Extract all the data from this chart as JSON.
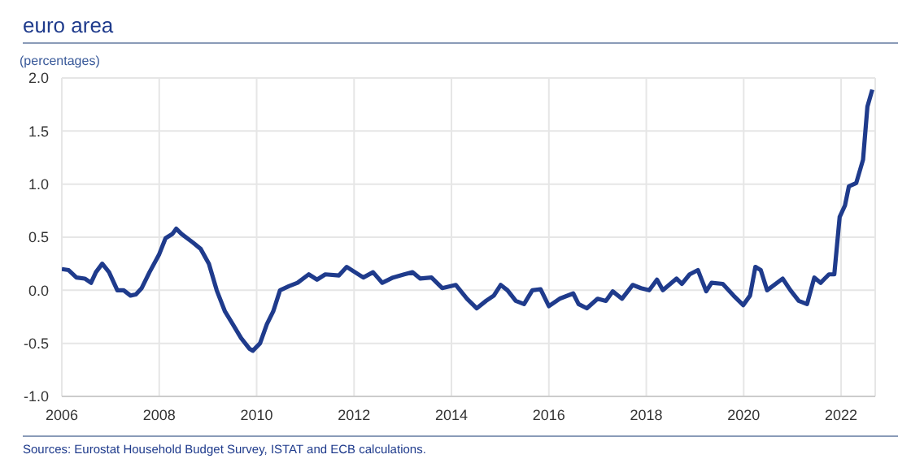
{
  "chart_data": {
    "type": "line",
    "title": "euro area",
    "subtitle": "(percentages)",
    "annotations": [
      "Sources: Eurostat Household Budget Survey, ISTAT and ECB calculations."
    ],
    "x": [
      2006.0,
      2006.14,
      2006.3,
      2006.47,
      2006.6,
      2006.7,
      2006.83,
      2006.97,
      2007.14,
      2007.27,
      2007.41,
      2007.52,
      2007.64,
      2007.8,
      2008.0,
      2008.13,
      2008.27,
      2008.35,
      2008.46,
      2008.69,
      2008.85,
      2009.02,
      2009.18,
      2009.35,
      2009.51,
      2009.68,
      2009.85,
      2009.92,
      2010.07,
      2010.21,
      2010.34,
      2010.48,
      2010.67,
      2010.84,
      2011.07,
      2011.24,
      2011.41,
      2011.69,
      2011.85,
      2012.02,
      2012.19,
      2012.39,
      2012.58,
      2012.8,
      2013.03,
      2013.2,
      2013.36,
      2013.59,
      2013.81,
      2014.09,
      2014.32,
      2014.52,
      2014.71,
      2014.87,
      2015.01,
      2015.15,
      2015.32,
      2015.49,
      2015.66,
      2015.83,
      2016.0,
      2016.22,
      2016.5,
      2016.61,
      2016.78,
      2017.0,
      2017.17,
      2017.31,
      2017.5,
      2017.72,
      2017.89,
      2018.06,
      2018.22,
      2018.34,
      2018.62,
      2018.73,
      2018.89,
      2019.06,
      2019.23,
      2019.34,
      2019.57,
      2019.79,
      2019.99,
      2020.13,
      2020.24,
      2020.35,
      2020.48,
      2020.8,
      2020.96,
      2021.13,
      2021.3,
      2021.45,
      2021.58,
      2021.75,
      2021.86,
      2021.97,
      2022.08,
      2022.16,
      2022.31,
      2022.45,
      2022.54,
      2022.64
    ],
    "series": [
      {
        "color": "#1f3b8c",
        "values": [
          0.2,
          0.19,
          0.12,
          0.11,
          0.07,
          0.17,
          0.25,
          0.17,
          0.0,
          0.0,
          -0.05,
          -0.04,
          0.02,
          0.17,
          0.34,
          0.49,
          0.53,
          0.58,
          0.53,
          0.45,
          0.39,
          0.25,
          0.0,
          -0.2,
          -0.32,
          -0.45,
          -0.55,
          -0.57,
          -0.5,
          -0.32,
          -0.2,
          0.0,
          0.04,
          0.07,
          0.15,
          0.1,
          0.15,
          0.14,
          0.22,
          0.17,
          0.12,
          0.17,
          0.07,
          0.12,
          0.15,
          0.17,
          0.11,
          0.12,
          0.02,
          0.05,
          -0.08,
          -0.17,
          -0.1,
          -0.05,
          0.05,
          0.0,
          -0.1,
          -0.13,
          0.0,
          0.01,
          -0.15,
          -0.08,
          -0.03,
          -0.13,
          -0.17,
          -0.08,
          -0.1,
          -0.01,
          -0.08,
          0.05,
          0.02,
          0.0,
          0.1,
          0.0,
          0.11,
          0.06,
          0.15,
          0.19,
          -0.01,
          0.07,
          0.06,
          -0.05,
          -0.14,
          -0.05,
          0.22,
          0.19,
          0.0,
          0.11,
          0.0,
          -0.1,
          -0.13,
          0.12,
          0.07,
          0.15,
          0.15,
          0.69,
          0.8,
          0.98,
          1.01,
          1.23,
          1.73,
          1.89
        ]
      }
    ],
    "xlim": [
      2006,
      2022.7
    ],
    "xticks": [
      2006,
      2008,
      2010,
      2012,
      2014,
      2016,
      2018,
      2020,
      2022
    ],
    "ylim": [
      -1,
      2
    ],
    "yticks": [
      {
        "value": -1,
        "label": "-1.0"
      },
      {
        "value": -0.5,
        "label": "-0.5"
      },
      {
        "value": 0,
        "label": "0.0"
      },
      {
        "value": 0.5,
        "label": "0.5"
      },
      {
        "value": 1,
        "label": "1.0"
      },
      {
        "value": 1.5,
        "label": "1.5"
      },
      {
        "value": 2,
        "label": "2.0"
      }
    ],
    "grid": true,
    "legend": false,
    "marker": "none",
    "line_style": "solid"
  }
}
